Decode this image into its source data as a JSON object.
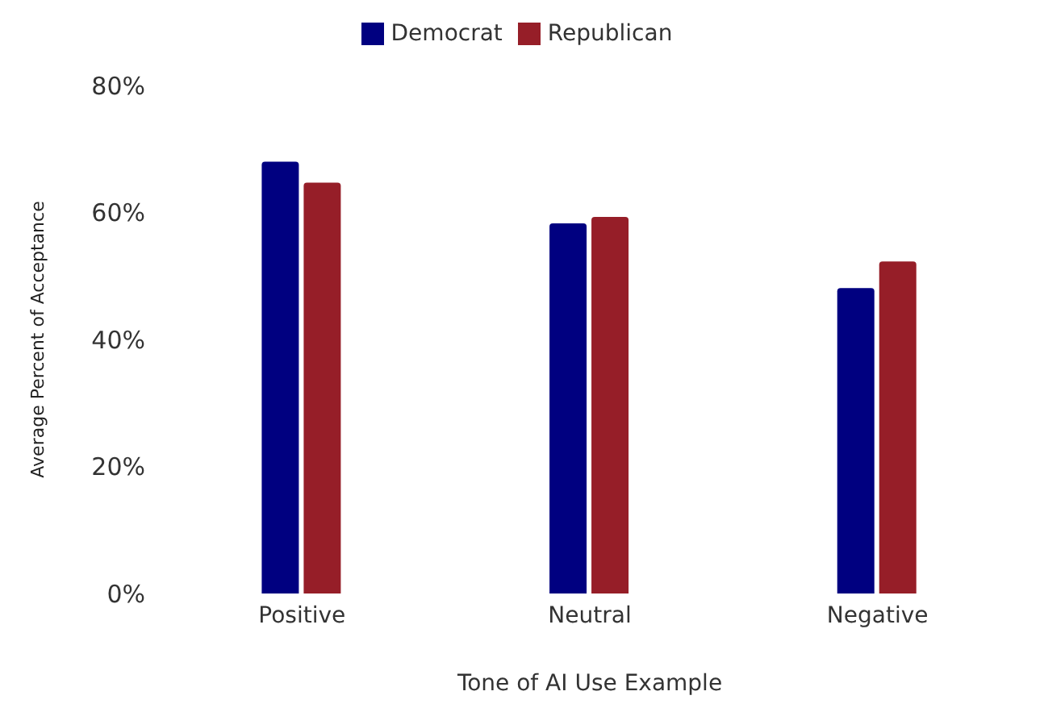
{
  "chart_data": {
    "type": "bar",
    "xlabel": "Tone of AI Use Example",
    "ylabel": "Average Percent of Acceptance",
    "categories": [
      "Positive",
      "Neutral",
      "Negative"
    ],
    "series": [
      {
        "name": "Democrat",
        "color": "#000080",
        "values": [
          68,
          58.3,
          48.1
        ]
      },
      {
        "name": "Republican",
        "color": "#961e28",
        "values": [
          64.7,
          59.3,
          52.3
        ]
      }
    ],
    "ylim": [
      0,
      80
    ],
    "yticks": [
      {
        "value": 0,
        "label": "0%"
      },
      {
        "value": 20,
        "label": "20%"
      },
      {
        "value": 40,
        "label": "40%"
      },
      {
        "value": 60,
        "label": "60%"
      },
      {
        "value": 80,
        "label": "80%"
      }
    ],
    "grid": false,
    "legend": "top"
  }
}
